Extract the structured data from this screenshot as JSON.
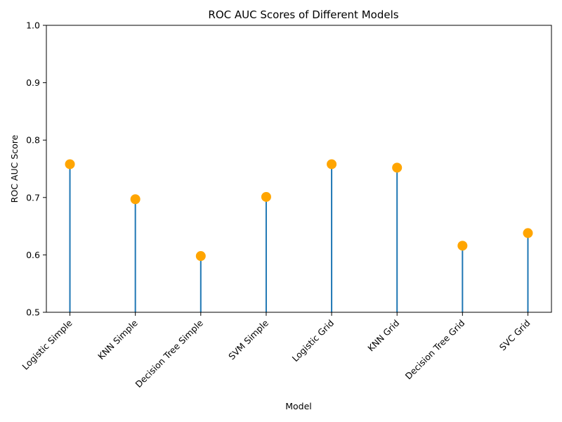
{
  "chart_data": {
    "type": "lollipop",
    "title": "ROC AUC Scores of Different Models",
    "xlabel": "Model",
    "ylabel": "ROC AUC Score",
    "categories": [
      "Logistic Simple",
      "KNN Simple",
      "Decision Tree Simple",
      "SVM Simple",
      "Logistic Grid",
      "KNN Grid",
      "Decision Tree Grid",
      "SVC Grid"
    ],
    "values": [
      0.758,
      0.697,
      0.598,
      0.701,
      0.758,
      0.752,
      0.616,
      0.638
    ],
    "ylim": [
      0.5,
      1.0
    ],
    "yticks": [
      "0.5",
      "0.6",
      "0.7",
      "0.8",
      "0.9",
      "1.0"
    ],
    "grid": false,
    "colors": {
      "stem": "#1f77b4",
      "marker": "#ffa500"
    }
  }
}
